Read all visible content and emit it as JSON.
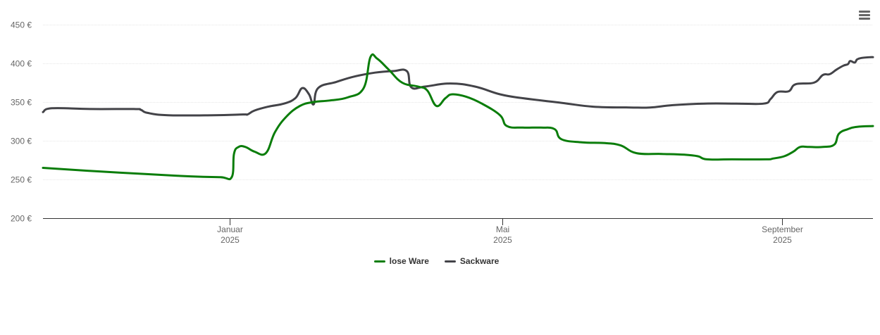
{
  "chart_data": {
    "type": "line",
    "title": "",
    "xlabel": "",
    "ylabel": "",
    "y_unit": "€",
    "ylim": [
      200,
      450
    ],
    "yticks": [
      {
        "value": 200,
        "label": "200 €"
      },
      {
        "value": 250,
        "label": "250 €"
      },
      {
        "value": 300,
        "label": "300 €"
      },
      {
        "value": 350,
        "label": "350 €"
      },
      {
        "value": 400,
        "label": "400 €"
      },
      {
        "value": 450,
        "label": "450 €"
      }
    ],
    "xlim": [
      "2024-10-11",
      "2025-10-11"
    ],
    "xticks": [
      {
        "date": "2025-01-01",
        "label": "Januar",
        "sublabel": "2025"
      },
      {
        "date": "2025-05-01",
        "label": "Mai",
        "sublabel": "2025"
      },
      {
        "date": "2025-09-01",
        "label": "September",
        "sublabel": "2025"
      }
    ],
    "grid": true,
    "legend_position": "bottom-center",
    "series": [
      {
        "name": "lose Ware",
        "color": "#0a7d0a",
        "points": [
          [
            "2024-10-11",
            265
          ],
          [
            "2024-11-01",
            261
          ],
          [
            "2024-11-25",
            257
          ],
          [
            "2024-12-15",
            254
          ],
          [
            "2024-12-28",
            253
          ],
          [
            "2025-01-02",
            253
          ],
          [
            "2025-01-03",
            283
          ],
          [
            "2025-01-05",
            292
          ],
          [
            "2025-01-08",
            292
          ],
          [
            "2025-01-12",
            286
          ],
          [
            "2025-01-17",
            284
          ],
          [
            "2025-01-21",
            311
          ],
          [
            "2025-01-26",
            331
          ],
          [
            "2025-02-01",
            345
          ],
          [
            "2025-02-07",
            350
          ],
          [
            "2025-02-14",
            352
          ],
          [
            "2025-02-22",
            356
          ],
          [
            "2025-03-01",
            368
          ],
          [
            "2025-03-04",
            408
          ],
          [
            "2025-03-07",
            406
          ],
          [
            "2025-03-12",
            392
          ],
          [
            "2025-03-18",
            375
          ],
          [
            "2025-03-25",
            370
          ],
          [
            "2025-03-29",
            365
          ],
          [
            "2025-04-02",
            345
          ],
          [
            "2025-04-06",
            355
          ],
          [
            "2025-04-09",
            360
          ],
          [
            "2025-04-15",
            357
          ],
          [
            "2025-04-22",
            348
          ],
          [
            "2025-04-30",
            333
          ],
          [
            "2025-05-03",
            319
          ],
          [
            "2025-05-10",
            317
          ],
          [
            "2025-05-18",
            317
          ],
          [
            "2025-05-24",
            315
          ],
          [
            "2025-05-27",
            302
          ],
          [
            "2025-06-05",
            298
          ],
          [
            "2025-06-15",
            297
          ],
          [
            "2025-06-22",
            294
          ],
          [
            "2025-06-29",
            284
          ],
          [
            "2025-07-10",
            283
          ],
          [
            "2025-07-20",
            282
          ],
          [
            "2025-07-26",
            280
          ],
          [
            "2025-07-30",
            276
          ],
          [
            "2025-08-10",
            276
          ],
          [
            "2025-08-25",
            276
          ],
          [
            "2025-08-28",
            277
          ],
          [
            "2025-09-02",
            280
          ],
          [
            "2025-09-06",
            286
          ],
          [
            "2025-09-09",
            292
          ],
          [
            "2025-09-13",
            292
          ],
          [
            "2025-09-19",
            292
          ],
          [
            "2025-09-24",
            295
          ],
          [
            "2025-09-26",
            309
          ],
          [
            "2025-09-30",
            315
          ],
          [
            "2025-10-04",
            318
          ],
          [
            "2025-10-11",
            319
          ]
        ]
      },
      {
        "name": "Sackware",
        "color": "#434348",
        "points": [
          [
            "2024-10-11",
            337
          ],
          [
            "2024-10-15",
            342
          ],
          [
            "2024-11-01",
            341
          ],
          [
            "2024-11-20",
            341
          ],
          [
            "2024-11-23",
            340
          ],
          [
            "2024-11-26",
            336
          ],
          [
            "2024-12-05",
            333
          ],
          [
            "2024-12-25",
            333
          ],
          [
            "2025-01-07",
            334
          ],
          [
            "2025-01-09",
            334
          ],
          [
            "2025-01-12",
            339
          ],
          [
            "2025-01-18",
            344
          ],
          [
            "2025-01-25",
            348
          ],
          [
            "2025-01-30",
            355
          ],
          [
            "2025-02-02",
            368
          ],
          [
            "2025-02-05",
            360
          ],
          [
            "2025-02-07",
            347
          ],
          [
            "2025-02-09",
            368
          ],
          [
            "2025-02-17",
            376
          ],
          [
            "2025-02-25",
            383
          ],
          [
            "2025-03-06",
            388
          ],
          [
            "2025-03-14",
            390
          ],
          [
            "2025-03-20",
            390
          ],
          [
            "2025-03-22",
            369
          ],
          [
            "2025-03-28",
            370
          ],
          [
            "2025-04-08",
            374
          ],
          [
            "2025-04-19",
            370
          ],
          [
            "2025-04-30",
            360
          ],
          [
            "2025-05-10",
            355
          ],
          [
            "2025-05-27",
            349
          ],
          [
            "2025-06-10",
            344
          ],
          [
            "2025-06-26",
            343
          ],
          [
            "2025-07-05",
            343
          ],
          [
            "2025-07-15",
            346
          ],
          [
            "2025-07-29",
            348
          ],
          [
            "2025-08-12",
            348
          ],
          [
            "2025-08-24",
            348
          ],
          [
            "2025-08-27",
            354
          ],
          [
            "2025-08-30",
            363
          ],
          [
            "2025-09-04",
            364
          ],
          [
            "2025-09-07",
            373
          ],
          [
            "2025-09-15",
            375
          ],
          [
            "2025-09-19",
            385
          ],
          [
            "2025-09-22",
            386
          ],
          [
            "2025-09-25",
            392
          ],
          [
            "2025-09-28",
            397
          ],
          [
            "2025-09-30",
            399
          ],
          [
            "2025-10-01",
            403
          ],
          [
            "2025-10-03",
            401
          ],
          [
            "2025-10-04",
            405
          ],
          [
            "2025-10-06",
            407
          ],
          [
            "2025-10-10",
            408
          ],
          [
            "2025-10-11",
            408
          ]
        ]
      }
    ]
  },
  "menu": {
    "icon": "hamburger-menu-icon"
  }
}
